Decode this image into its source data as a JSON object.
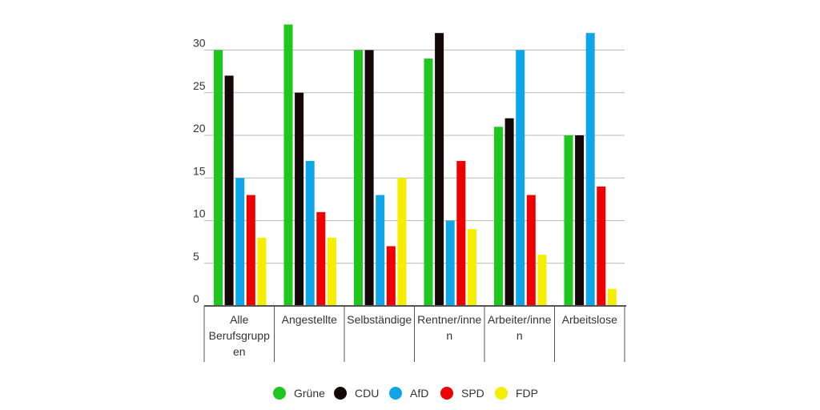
{
  "chart_data": {
    "type": "bar",
    "title": "",
    "xlabel": "",
    "ylabel": "",
    "ylim": [
      0,
      33
    ],
    "yticks": [
      0,
      5,
      10,
      15,
      20,
      25,
      30
    ],
    "grid": true,
    "legend_position": "bottom-center",
    "categories": [
      [
        "Alle",
        "Berufsgrupp",
        "en"
      ],
      [
        "Angestellte"
      ],
      [
        "Selbständige"
      ],
      [
        "Rentner/inne",
        "n"
      ],
      [
        "Arbeiter/inne",
        "n"
      ],
      [
        "Arbeitslose"
      ]
    ],
    "series": [
      {
        "name": "Grüne",
        "color": "#1dc71d",
        "values": [
          30,
          33,
          30,
          29,
          21,
          20
        ]
      },
      {
        "name": "CDU",
        "color": "#130707",
        "values": [
          27,
          25,
          30,
          32,
          22,
          20
        ]
      },
      {
        "name": "AfD",
        "color": "#0ea5e9",
        "values": [
          15,
          17,
          13,
          10,
          30,
          32
        ]
      },
      {
        "name": "SPD",
        "color": "#ef0000",
        "values": [
          13,
          11,
          7,
          17,
          13,
          14
        ]
      },
      {
        "name": "FDP",
        "color": "#f5ee00",
        "values": [
          8,
          8,
          15,
          9,
          6,
          2
        ]
      }
    ]
  }
}
